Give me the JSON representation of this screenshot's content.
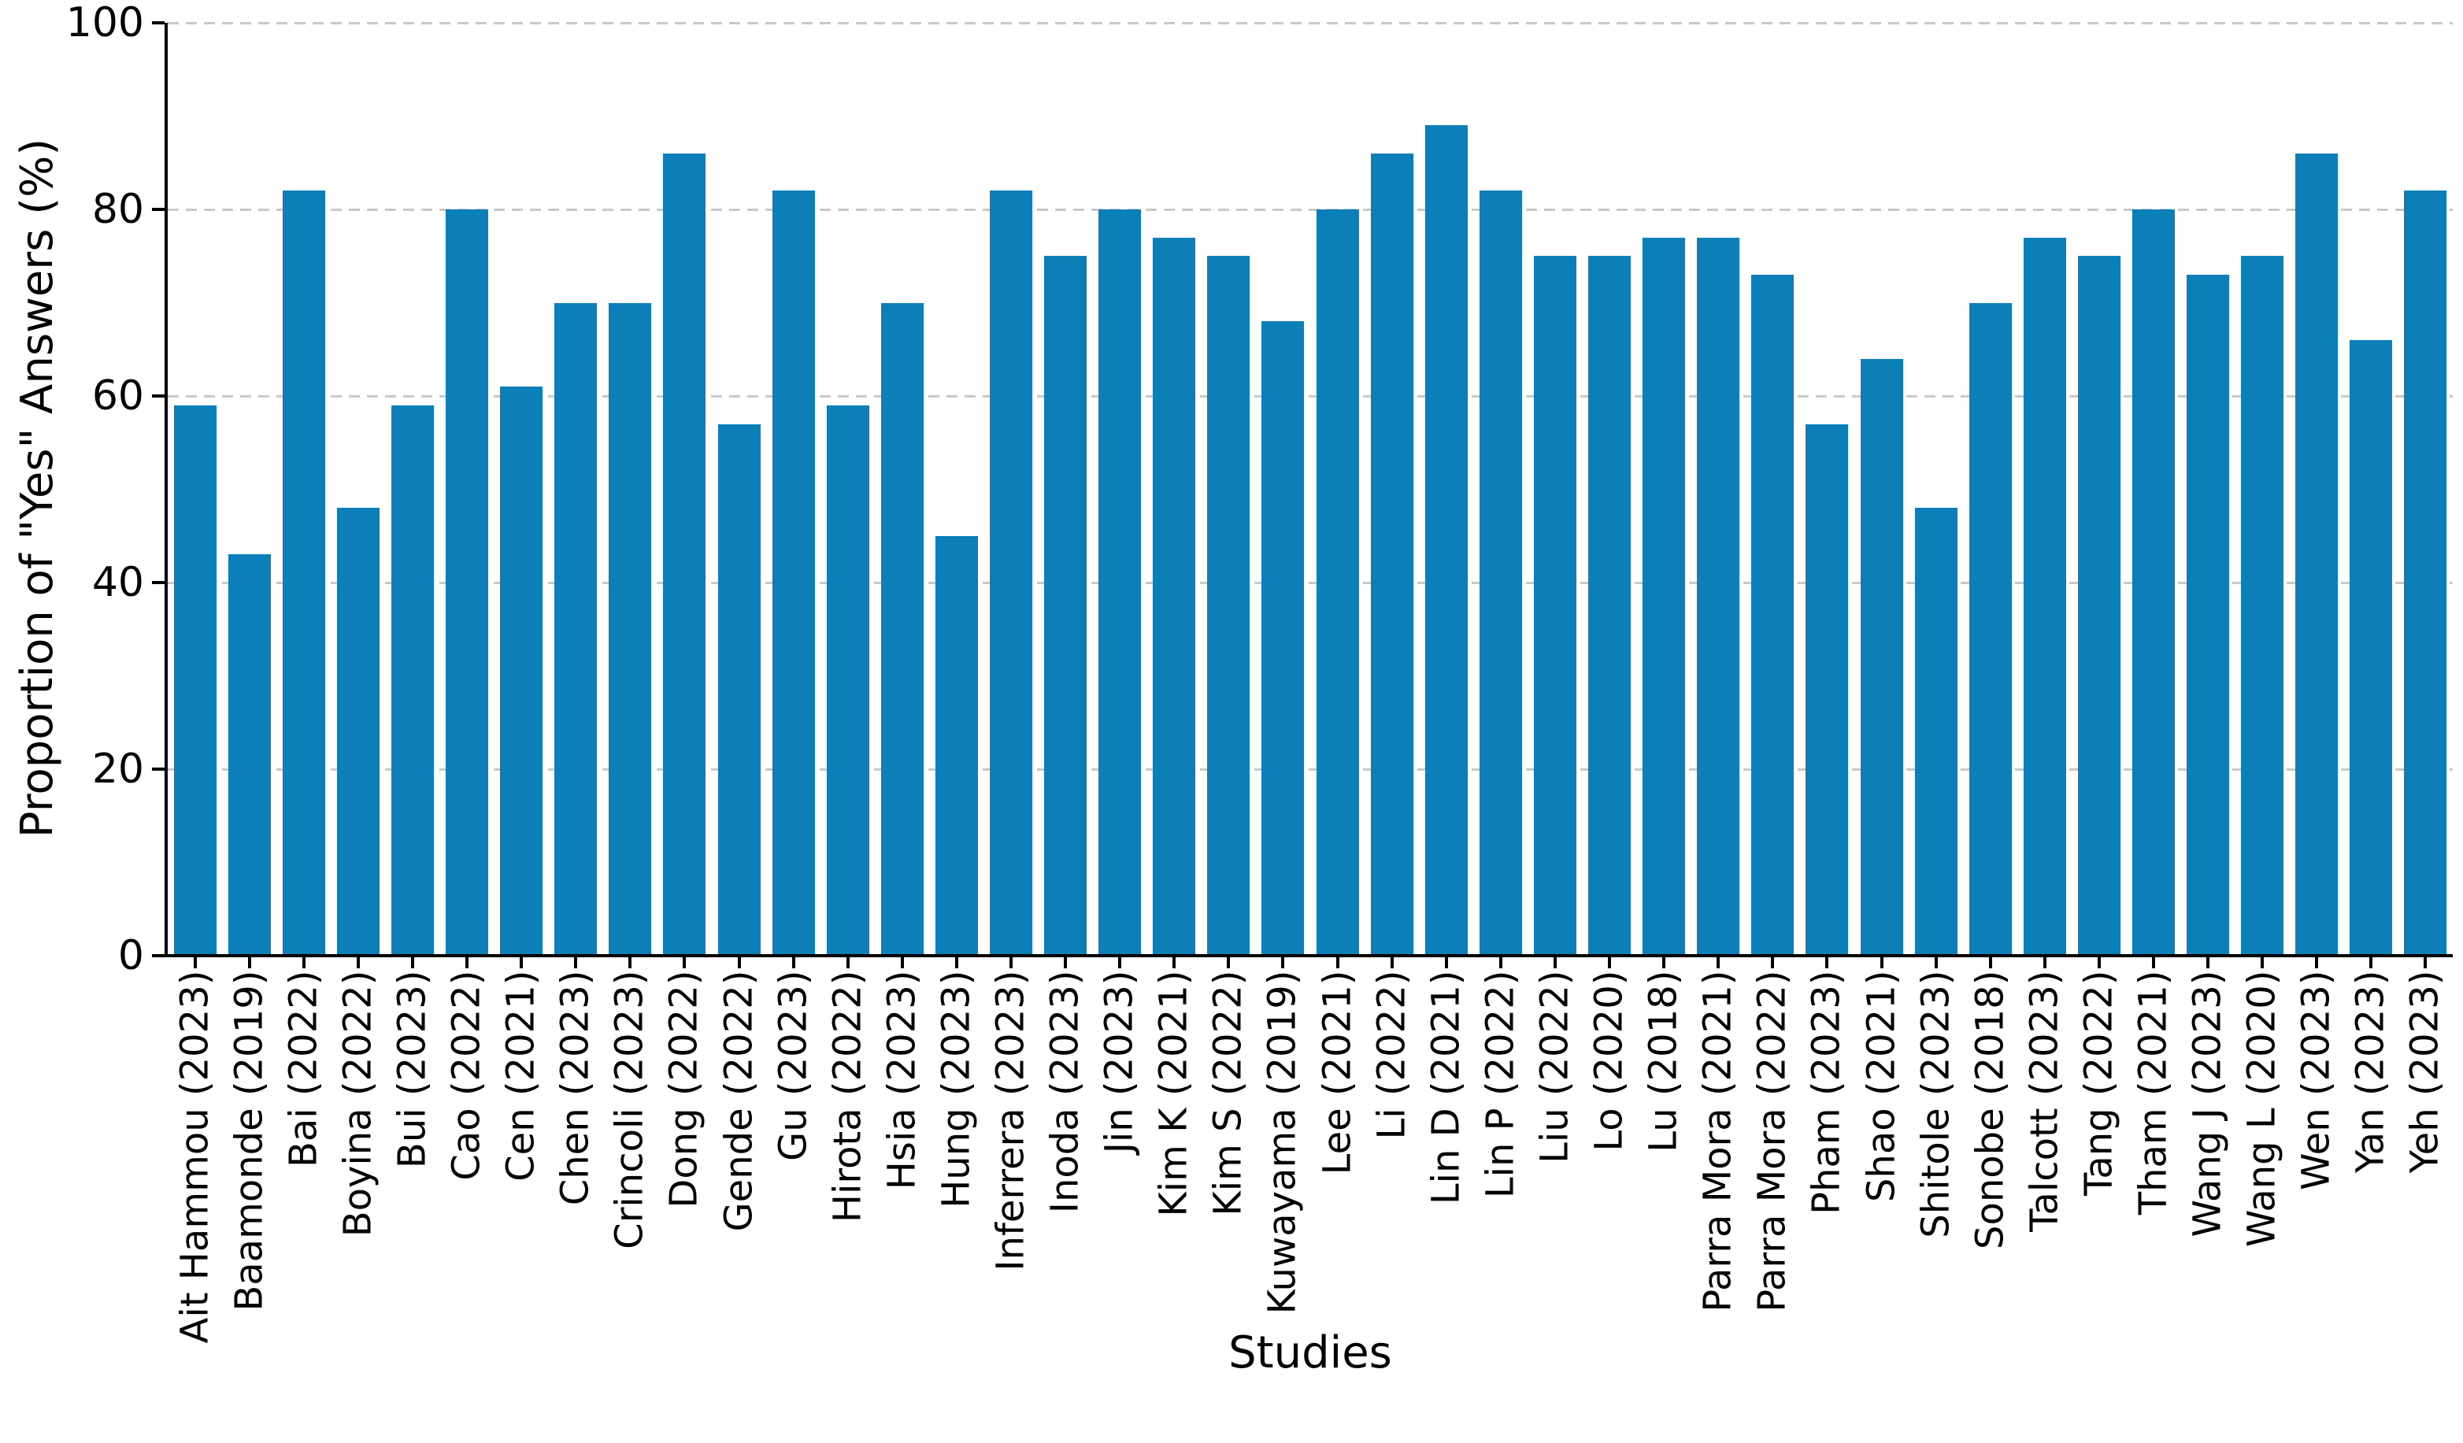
{
  "figure": {
    "background": "#ffffff"
  },
  "chart_data": {
    "type": "bar",
    "title": "",
    "xlabel": "Studies",
    "ylabel": "Proportion of \"Yes\" Answers (%)",
    "ylim": [
      0,
      100
    ],
    "yticks": [
      0,
      20,
      40,
      60,
      80,
      100
    ],
    "grid": "horizontal dashed gridlines at each y tick, drawn behind bars",
    "legend": "none",
    "bar_color": "#0c7fb8",
    "axis_color": "#000000",
    "gridline_color": "#c9c9c9",
    "categories": [
      "Ait Hammou (2023)",
      "Baamonde (2019)",
      "Bai (2022)",
      "Boyina (2022)",
      "Bui (2023)",
      "Cao (2022)",
      "Cen (2021)",
      "Chen (2023)",
      "Crincoli (2023)",
      "Dong (2022)",
      "Gende (2022)",
      "Gu (2023)",
      "Hirota (2022)",
      "Hsia (2023)",
      "Hung (2023)",
      "Inferrera (2023)",
      "Inoda (2023)",
      "Jin (2023)",
      "Kim K (2021)",
      "Kim S (2022)",
      "Kuwayama (2019)",
      "Lee (2021)",
      "Li (2022)",
      "Lin D (2021)",
      "Lin P (2022)",
      "Liu (2022)",
      "Lo (2020)",
      "Lu (2018)",
      "Parra Mora (2021)",
      "Parra Mora (2022)",
      "Pham (2023)",
      "Shao (2021)",
      "Shitole (2023)",
      "Sonobe (2018)",
      "Talcott (2023)",
      "Tang (2022)",
      "Tham (2021)",
      "Wang J (2023)",
      "Wang L (2020)",
      "Wen (2023)",
      "Yan (2023)",
      "Yeh (2023)"
    ],
    "values": [
      59,
      43,
      82,
      48,
      59,
      80,
      61,
      70,
      70,
      86,
      57,
      82,
      59,
      70,
      45,
      82,
      75,
      80,
      77,
      75,
      68,
      80,
      86,
      89,
      82,
      75,
      75,
      77,
      77,
      73,
      57,
      64,
      48,
      70,
      77,
      75,
      80,
      73,
      75,
      86,
      66,
      82
    ]
  }
}
